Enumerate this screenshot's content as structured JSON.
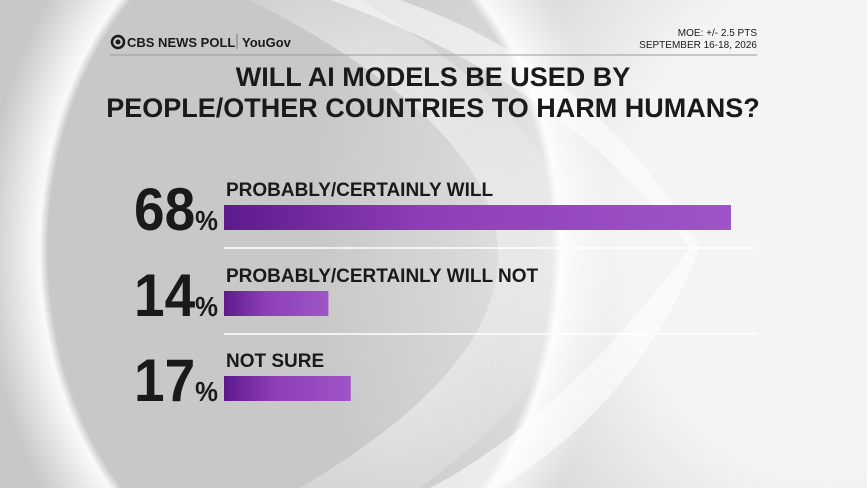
{
  "header": {
    "brand": "CBS NEWS POLL",
    "partner": "YouGov",
    "moe": "MOE: +/- 2.5 PTS",
    "dates": "SEPTEMBER 16-18, 2026"
  },
  "chart_data": {
    "type": "bar",
    "orientation": "horizontal",
    "title": [
      "WILL AI MODELS BE USED BY",
      "PEOPLE/OTHER COUNTRIES TO HARM HUMANS?"
    ],
    "categories": [
      "PROBABLY/CERTAINLY WILL",
      "PROBABLY/CERTAINLY WILL NOT",
      "NOT SURE"
    ],
    "values": [
      68,
      14,
      17
    ],
    "value_labels": [
      "68%",
      "14%",
      "17%"
    ],
    "color": "#8e3fb8"
  }
}
